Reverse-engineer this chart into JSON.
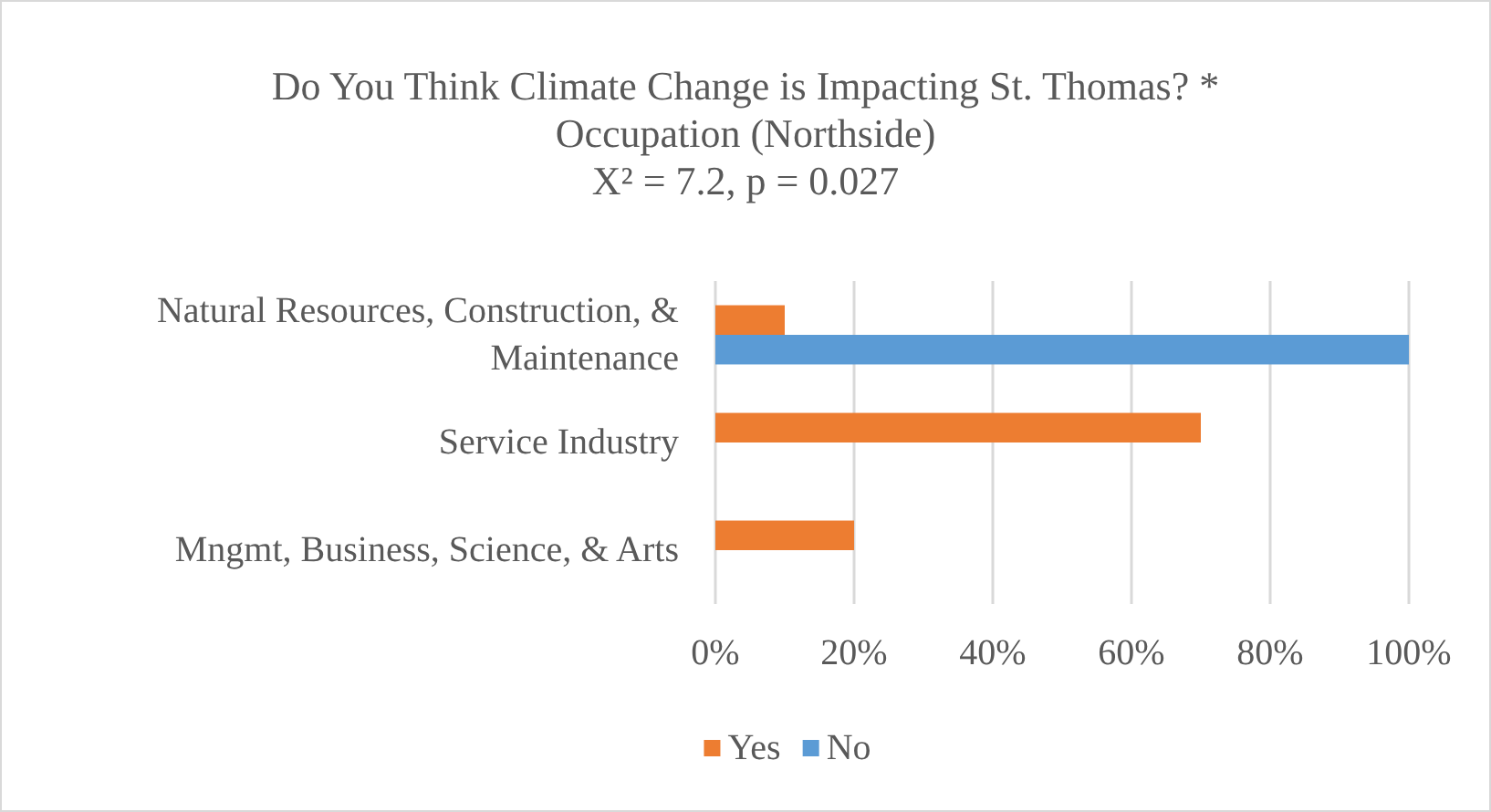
{
  "chart_data": {
    "type": "bar",
    "orientation": "horizontal",
    "title": "Do You Think Climate Change is Impacting St. Thomas? * Occupation (Northside)",
    "subtitle": "X² = 7.2, p = 0.027",
    "categories": [
      "Natural Resources, Construction, & Maintenance",
      "Service Industry",
      "Mngmt, Business, Science, & Arts"
    ],
    "series": [
      {
        "name": "Yes",
        "color": "#ed7d31",
        "values": [
          10,
          70,
          20
        ]
      },
      {
        "name": "No",
        "color": "#5b9bd5",
        "values": [
          100,
          0,
          0
        ]
      }
    ],
    "xlim": [
      0,
      100
    ],
    "xticks": [
      {
        "value": 0,
        "label": "0%"
      },
      {
        "value": 20,
        "label": "20%"
      },
      {
        "value": 40,
        "label": "40%"
      },
      {
        "value": 60,
        "label": "60%"
      },
      {
        "value": 80,
        "label": "80%"
      },
      {
        "value": 100,
        "label": "100%"
      }
    ],
    "grid": "x",
    "legend": "bottom"
  }
}
